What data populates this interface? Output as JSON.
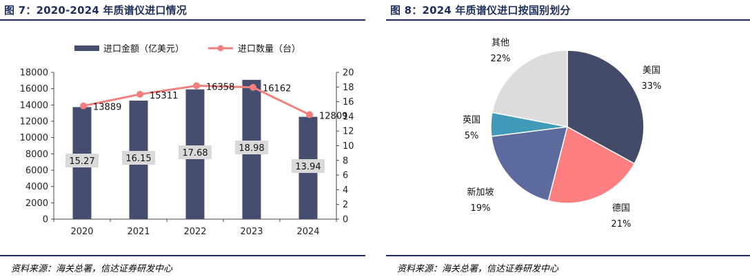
{
  "colors": {
    "title": "#1f2f5c",
    "bar": "#454e6e",
    "line": "#f47f7f",
    "bar_label_bg": "#d9d9d9",
    "pie": [
      "#434b69",
      "#fe7f7f",
      "#5c6a9e",
      "#3f9bb7",
      "#dcdcdc"
    ]
  },
  "left": {
    "title": "图 7：2020-2024 年质谱仪进口情况",
    "source": "资料来源：海关总署，信达证券研发中心"
  },
  "right": {
    "title": "图 8：2024 年质谱仪进口按国别划分",
    "source": "资料来源：海关总署，信达证券研发中心"
  },
  "chart_data": [
    {
      "type": "bar",
      "combo": "bar+line, dual axis",
      "categories": [
        "2020",
        "2021",
        "2022",
        "2023",
        "2024"
      ],
      "series": [
        {
          "name": "进口金额（亿美元）",
          "type": "bar",
          "axis": "right",
          "values": [
            15.27,
            16.15,
            17.68,
            18.98,
            13.94
          ],
          "labels": [
            "15.27",
            "16.15",
            "17.68",
            "18.98",
            "13.94"
          ]
        },
        {
          "name": "进口数量（台）",
          "type": "line",
          "axis": "left",
          "values": [
            13889,
            15311,
            16358,
            16162,
            12809
          ],
          "labels": [
            "13889",
            "15311",
            "16358",
            "16162",
            "12809"
          ]
        }
      ],
      "y_left": {
        "range": [
          0,
          18000
        ],
        "ticks": [
          "0",
          "2000",
          "4000",
          "6000",
          "8000",
          "10000",
          "12000",
          "14000",
          "16000",
          "18000"
        ]
      },
      "y_right": {
        "range": [
          0,
          20
        ],
        "ticks": [
          "0",
          "2",
          "4",
          "6",
          "8",
          "10",
          "12",
          "14",
          "16",
          "18",
          "20"
        ]
      },
      "legend_position": "top",
      "grid": false
    },
    {
      "type": "pie",
      "slices": [
        {
          "label": "美国",
          "pct": "33%",
          "value": 33
        },
        {
          "label": "德国",
          "pct": "21%",
          "value": 21
        },
        {
          "label": "新加坡",
          "pct": "19%",
          "value": 19
        },
        {
          "label": "英国",
          "pct": "5%",
          "value": 5
        },
        {
          "label": "其他",
          "pct": "22%",
          "value": 22
        }
      ],
      "legend_position": "none"
    }
  ]
}
